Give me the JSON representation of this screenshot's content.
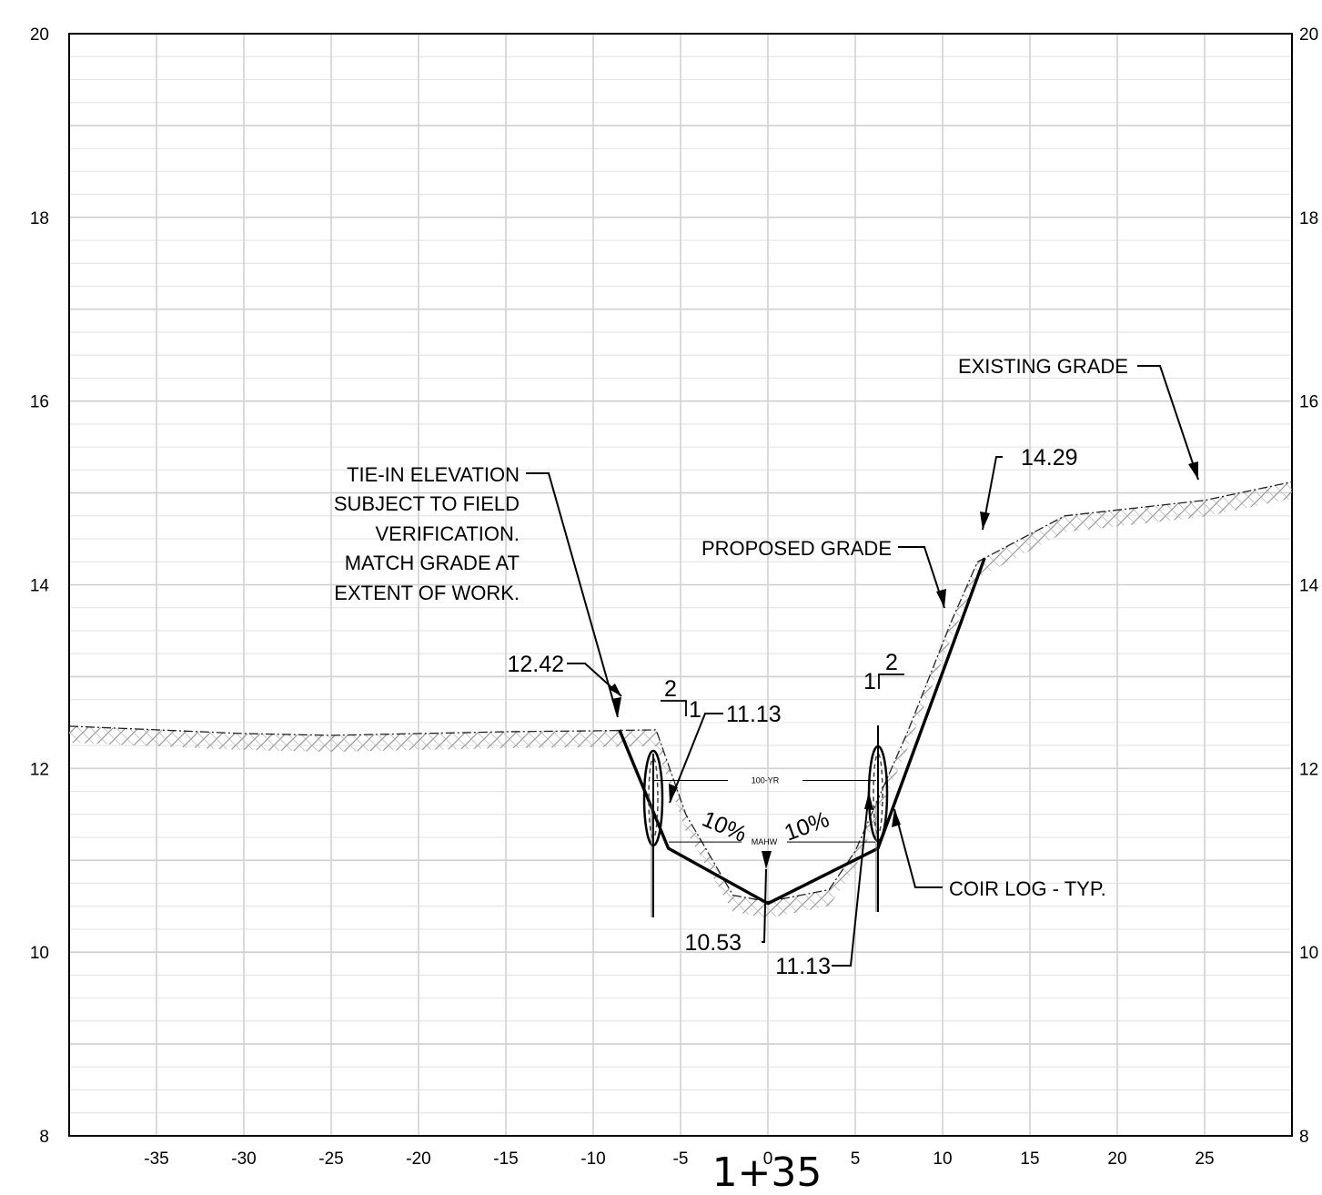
{
  "station": "1+35",
  "axes": {
    "x_ticks": [
      "-35",
      "-30",
      "-25",
      "-20",
      "-15",
      "-10",
      "-5",
      "0",
      "5",
      "10",
      "15",
      "20",
      "25"
    ],
    "y_ticks": [
      "8",
      "10",
      "12",
      "14",
      "16",
      "18",
      "20"
    ],
    "y_ticks_right": [
      "8",
      "10",
      "12",
      "14",
      "16",
      "18",
      "20"
    ],
    "x_range": [
      -40,
      30
    ],
    "y_range": [
      8,
      20
    ]
  },
  "existing_grade": [
    [
      -40,
      12.46
    ],
    [
      -35,
      12.42
    ],
    [
      -30,
      12.38
    ],
    [
      -25,
      12.36
    ],
    [
      -20,
      12.38
    ],
    [
      -15,
      12.4
    ],
    [
      -10,
      12.41
    ],
    [
      -6.4,
      12.42
    ],
    [
      -4.7,
      11.5
    ],
    [
      -2,
      10.62
    ],
    [
      0,
      10.55
    ],
    [
      3.5,
      10.68
    ],
    [
      5,
      11.1
    ],
    [
      8,
      12.4
    ],
    [
      10.5,
      13.6
    ],
    [
      12,
      14.25
    ],
    [
      17,
      14.75
    ],
    [
      25,
      14.92
    ],
    [
      30,
      15.12
    ]
  ],
  "proposed_grade": [
    [
      -8.5,
      12.42
    ],
    [
      -5.7,
      11.13
    ],
    [
      0,
      10.53
    ],
    [
      6.3,
      11.13
    ],
    [
      12.4,
      14.29
    ]
  ],
  "water_levels": [
    {
      "label": "100-YR",
      "elev": 11.87
    },
    {
      "label": "MAHW",
      "elev": 11.2
    }
  ],
  "labels": {
    "tie_in": [
      "TIE-IN ELEVATION",
      "SUBJECT TO FIELD",
      "VERIFICATION.",
      "MATCH GRADE AT",
      "EXTENT OF WORK."
    ],
    "proposed_grade": "PROPOSED GRADE",
    "existing_grade": "EXISTING GRADE",
    "coir_log": "COIR LOG - TYP.",
    "elev_left_top": "12.42",
    "elev_left_toe": "11.13",
    "elev_bottom": "10.53",
    "elev_right_toe": "11.13",
    "elev_right_top": "14.29",
    "slope_left": "10%",
    "slope_right": "10%",
    "slope_run": "2",
    "slope_rise": "1"
  }
}
